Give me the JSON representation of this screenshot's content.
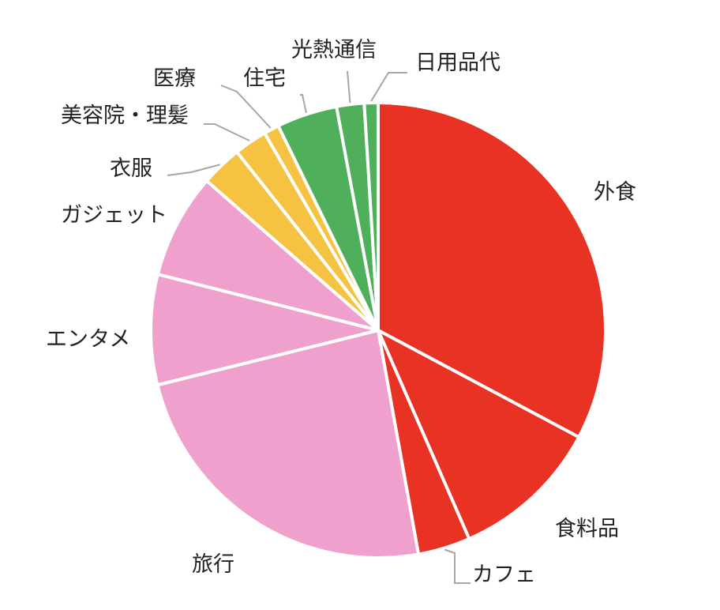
{
  "chart_data": {
    "type": "pie",
    "start_angle_deg": 0,
    "direction": "clockwise",
    "labels": [
      "外食",
      "食料品",
      "カフェ",
      "旅行",
      "エンタメ",
      "ガジェット",
      "衣服",
      "美容院・理髪",
      "医療",
      "住宅",
      "光熱通信",
      "日用品代"
    ],
    "values": [
      33.5,
      10.9,
      3.8,
      24.5,
      8.0,
      7.6,
      3.0,
      2.4,
      1.1,
      4.4,
      2.0,
      1.0
    ],
    "colors": [
      "#e83224",
      "#e83224",
      "#e83224",
      "#f0a0cc",
      "#f0a0cc",
      "#f0a0cc",
      "#f5c242",
      "#f5c242",
      "#f5c242",
      "#4faf5a",
      "#4faf5a",
      "#4faf5a"
    ]
  }
}
